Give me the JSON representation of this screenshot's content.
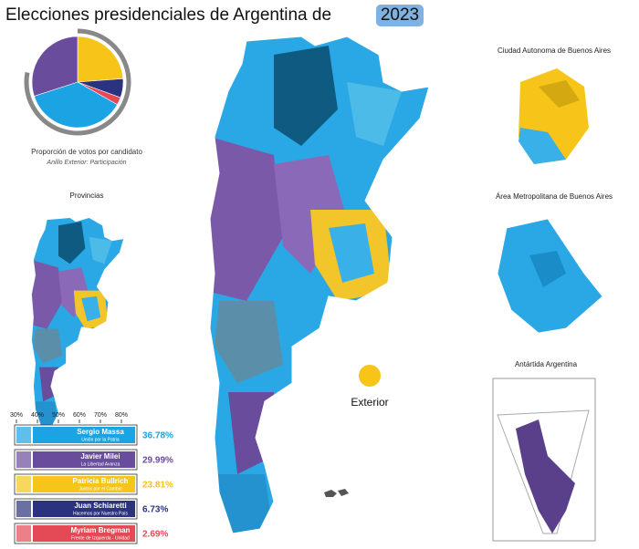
{
  "title": "Elecciones presidenciales de Argentina de",
  "title_year": "2023",
  "pie": {
    "caption": "Proporción de votos por candidato",
    "subcaption": "Anillo Exterior: Participación",
    "participation": 78
  },
  "sections": {
    "provinces": "Provincias",
    "caba": "Ciudad Autonoma de Buenos Aires",
    "amba": "Área Metropolitana de Buenos Aires",
    "antarctica": "Antártida Argentina",
    "abroad": "Exterior"
  },
  "scale_ticks": [
    {
      "value": 30,
      "label": "30%"
    },
    {
      "value": 40,
      "label": "40%"
    },
    {
      "value": 50,
      "label": "50%"
    },
    {
      "value": 60,
      "label": "60%"
    },
    {
      "value": 70,
      "label": "70%"
    },
    {
      "value": 80,
      "label": "80%"
    }
  ],
  "candidates": [
    {
      "name": "Sergio Massa",
      "party": "Unión por la Patria",
      "value": 36.78,
      "value_label": "36.78%",
      "color": "#1ba3e4"
    },
    {
      "name": "Javier Milei",
      "party": "La Libertad Avanza",
      "value": 29.99,
      "value_label": "29.99%",
      "color": "#6a4c9c"
    },
    {
      "name": "Patricia Bullrich",
      "party": "Juntos por el Cambio",
      "value": 23.81,
      "value_label": "23.81%",
      "color": "#f7c41a"
    },
    {
      "name": "Juan Schiaretti",
      "party": "Hacemos por Nuestro País",
      "value": 6.73,
      "value_label": "6.73%",
      "color": "#2b3280"
    },
    {
      "name": "Myriam Bregman",
      "party": "Frente de Izquierda - Unidad",
      "value": 2.69,
      "value_label": "2.69%",
      "color": "#e34a55"
    }
  ]
}
